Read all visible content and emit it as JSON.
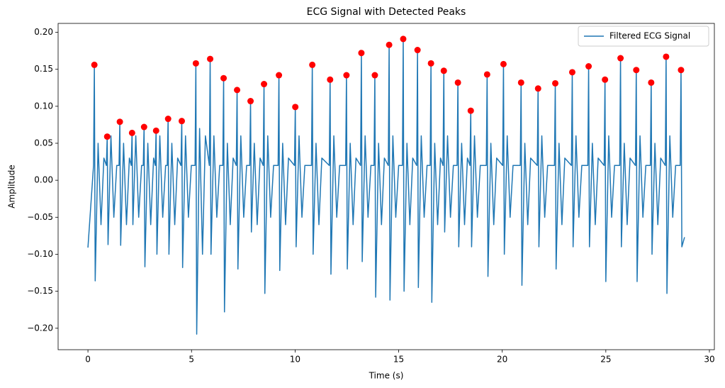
{
  "chart_data": {
    "type": "line",
    "title": "ECG Signal with Detected Peaks",
    "x_label": "Time (s)",
    "y_label": "Amplitude",
    "xlim": [
      -1.44,
      30.24
    ],
    "ylim": [
      -0.229,
      0.212
    ],
    "xticks": [
      0,
      5,
      10,
      15,
      20,
      25,
      30
    ],
    "yticks": [
      {
        "value": -0.2,
        "label": "−0.20"
      },
      {
        "value": -0.15,
        "label": "−0.15"
      },
      {
        "value": -0.1,
        "label": "−0.10"
      },
      {
        "value": -0.05,
        "label": "−0.05"
      },
      {
        "value": 0,
        "label": "0.00"
      },
      {
        "value": 0.05,
        "label": "0.05"
      },
      {
        "value": 0.1,
        "label": "0.10"
      },
      {
        "value": 0.15,
        "label": "0.15"
      },
      {
        "value": 0.2,
        "label": "0.20"
      }
    ],
    "legend": "upper right",
    "series": [
      {
        "name": "Filtered ECG Signal",
        "color": "#1f77b4",
        "x": [
          0,
          0.27,
          0.31,
          0.35,
          0.49,
          0.63,
          0.77,
          0.89,
          0.93,
          0.97,
          1.11,
          1.25,
          1.39,
          1.5,
          1.54,
          1.58,
          1.72,
          1.86,
          2.0,
          2.09,
          2.13,
          2.17,
          2.31,
          2.45,
          2.59,
          2.67,
          2.71,
          2.75,
          2.89,
          3.03,
          3.17,
          3.25,
          3.29,
          3.33,
          3.47,
          3.61,
          3.75,
          3.83,
          3.87,
          3.91,
          4.05,
          4.19,
          4.33,
          4.49,
          4.53,
          4.57,
          4.71,
          4.85,
          4.99,
          5.17,
          5.21,
          5.25,
          5.39,
          5.53,
          5.67,
          5.86,
          5.9,
          5.94,
          6.08,
          6.22,
          6.36,
          6.51,
          6.55,
          6.59,
          6.73,
          6.87,
          7.01,
          7.16,
          7.2,
          7.24,
          7.38,
          7.52,
          7.66,
          7.81,
          7.85,
          7.89,
          8.03,
          8.17,
          8.31,
          8.46,
          8.5,
          8.54,
          8.68,
          8.82,
          8.96,
          9.18,
          9.22,
          9.26,
          9.4,
          9.54,
          9.68,
          9.97,
          10.01,
          10.05,
          10.19,
          10.33,
          10.47,
          10.79,
          10.83,
          10.87,
          11.01,
          11.15,
          11.29,
          11.65,
          11.69,
          11.73,
          11.87,
          12.01,
          12.15,
          12.44,
          12.48,
          12.52,
          12.66,
          12.8,
          12.94,
          13.16,
          13.2,
          13.24,
          13.38,
          13.52,
          13.66,
          13.81,
          13.85,
          13.89,
          14.03,
          14.17,
          14.31,
          14.5,
          14.54,
          14.58,
          14.72,
          14.86,
          15.0,
          15.18,
          15.22,
          15.26,
          15.4,
          15.54,
          15.68,
          15.87,
          15.91,
          15.95,
          16.09,
          16.23,
          16.37,
          16.52,
          16.56,
          16.6,
          16.74,
          16.88,
          17.02,
          17.14,
          17.18,
          17.22,
          17.36,
          17.5,
          17.64,
          17.82,
          17.86,
          17.9,
          18.04,
          18.18,
          18.32,
          18.44,
          18.48,
          18.52,
          18.66,
          18.8,
          18.94,
          19.23,
          19.27,
          19.31,
          19.45,
          19.59,
          19.73,
          20.02,
          20.06,
          20.1,
          20.24,
          20.38,
          20.52,
          20.87,
          20.91,
          20.95,
          21.09,
          21.23,
          21.37,
          21.69,
          21.73,
          21.77,
          21.91,
          22.05,
          22.19,
          22.52,
          22.56,
          22.6,
          22.74,
          22.88,
          23.02,
          23.34,
          23.38,
          23.42,
          23.56,
          23.7,
          23.84,
          24.13,
          24.17,
          24.21,
          24.35,
          24.49,
          24.63,
          24.92,
          24.96,
          25.0,
          25.14,
          25.28,
          25.42,
          25.67,
          25.71,
          25.75,
          25.89,
          26.03,
          26.17,
          26.43,
          26.47,
          26.51,
          26.65,
          26.79,
          26.93,
          27.15,
          27.19,
          27.23,
          27.37,
          27.51,
          27.65,
          27.87,
          27.91,
          27.95,
          28.09,
          28.23,
          28.37,
          28.59,
          28.63,
          28.67,
          28.8
        ],
        "values": [
          -0.091,
          0.02,
          0.156,
          -0.136,
          0.05,
          -0.06,
          0.03,
          0.02,
          0.059,
          -0.087,
          0.06,
          -0.05,
          0.02,
          0.02,
          0.079,
          -0.088,
          0.05,
          -0.06,
          0.03,
          0.02,
          0.064,
          -0.06,
          0.06,
          -0.05,
          0.02,
          0.02,
          0.072,
          -0.117,
          0.05,
          -0.06,
          0.03,
          0.02,
          0.067,
          -0.1,
          0.06,
          -0.05,
          0.02,
          0.02,
          0.083,
          -0.1,
          0.05,
          -0.06,
          0.03,
          0.02,
          0.08,
          -0.118,
          0.06,
          -0.05,
          0.02,
          0.02,
          0.158,
          -0.208,
          0.07,
          -0.1,
          0.06,
          0.02,
          0.164,
          -0.1,
          0.06,
          -0.05,
          0.02,
          0.02,
          0.138,
          -0.178,
          0.05,
          -0.06,
          0.03,
          0.02,
          0.122,
          -0.12,
          0.06,
          -0.05,
          0.02,
          0.02,
          0.107,
          -0.07,
          0.05,
          -0.06,
          0.03,
          0.02,
          0.13,
          -0.153,
          0.06,
          -0.05,
          0.02,
          0.02,
          0.142,
          -0.122,
          0.05,
          -0.06,
          0.03,
          0.02,
          0.099,
          -0.09,
          0.06,
          -0.05,
          0.02,
          0.02,
          0.156,
          -0.1,
          0.05,
          -0.06,
          0.03,
          0.02,
          0.136,
          -0.127,
          0.06,
          -0.05,
          0.02,
          0.02,
          0.142,
          -0.12,
          0.05,
          -0.06,
          0.03,
          0.02,
          0.172,
          -0.11,
          0.06,
          -0.05,
          0.02,
          0.02,
          0.142,
          -0.158,
          0.05,
          -0.06,
          0.03,
          0.02,
          0.183,
          -0.162,
          0.06,
          -0.05,
          0.02,
          0.02,
          0.191,
          -0.15,
          0.05,
          -0.06,
          0.03,
          0.02,
          0.176,
          -0.145,
          0.06,
          -0.05,
          0.02,
          0.02,
          0.158,
          -0.165,
          0.05,
          -0.06,
          0.03,
          0.02,
          0.148,
          -0.07,
          0.06,
          -0.05,
          0.02,
          0.02,
          0.132,
          -0.09,
          0.05,
          -0.06,
          0.03,
          0.02,
          0.094,
          -0.09,
          0.06,
          -0.05,
          0.02,
          0.02,
          0.143,
          -0.13,
          0.05,
          -0.06,
          0.03,
          0.02,
          0.157,
          -0.1,
          0.06,
          -0.05,
          0.02,
          0.02,
          0.132,
          -0.142,
          0.05,
          -0.06,
          0.03,
          0.02,
          0.124,
          -0.09,
          0.06,
          -0.05,
          0.02,
          0.02,
          0.131,
          -0.12,
          0.05,
          -0.06,
          0.03,
          0.02,
          0.146,
          -0.09,
          0.06,
          -0.05,
          0.02,
          0.02,
          0.154,
          -0.09,
          0.05,
          -0.06,
          0.03,
          0.02,
          0.136,
          -0.137,
          0.06,
          -0.05,
          0.02,
          0.02,
          0.165,
          -0.09,
          0.05,
          -0.06,
          0.03,
          0.02,
          0.149,
          -0.137,
          0.06,
          -0.05,
          0.02,
          0.02,
          0.132,
          -0.1,
          0.05,
          -0.06,
          0.03,
          0.02,
          0.167,
          -0.153,
          0.06,
          -0.05,
          0.02,
          0.02,
          0.149,
          -0.09,
          -0.077
        ]
      }
    ],
    "peaks": {
      "color": "#ff0000",
      "x": [
        0.31,
        0.93,
        1.54,
        2.13,
        2.71,
        3.29,
        3.87,
        4.53,
        5.21,
        5.9,
        6.55,
        7.2,
        7.85,
        8.5,
        9.22,
        10.01,
        10.83,
        11.69,
        12.48,
        13.2,
        13.85,
        14.54,
        15.22,
        15.91,
        16.56,
        17.18,
        17.86,
        18.48,
        19.27,
        20.06,
        20.91,
        21.73,
        22.56,
        23.38,
        24.17,
        24.96,
        25.71,
        26.47,
        27.19,
        27.91,
        28.63
      ],
      "values": [
        0.156,
        0.059,
        0.079,
        0.064,
        0.072,
        0.067,
        0.083,
        0.08,
        0.158,
        0.164,
        0.138,
        0.122,
        0.107,
        0.13,
        0.142,
        0.099,
        0.156,
        0.136,
        0.142,
        0.172,
        0.142,
        0.183,
        0.191,
        0.176,
        0.158,
        0.148,
        0.132,
        0.094,
        0.143,
        0.157,
        0.132,
        0.124,
        0.131,
        0.146,
        0.154,
        0.136,
        0.165,
        0.149,
        0.132,
        0.167,
        0.149
      ]
    }
  }
}
